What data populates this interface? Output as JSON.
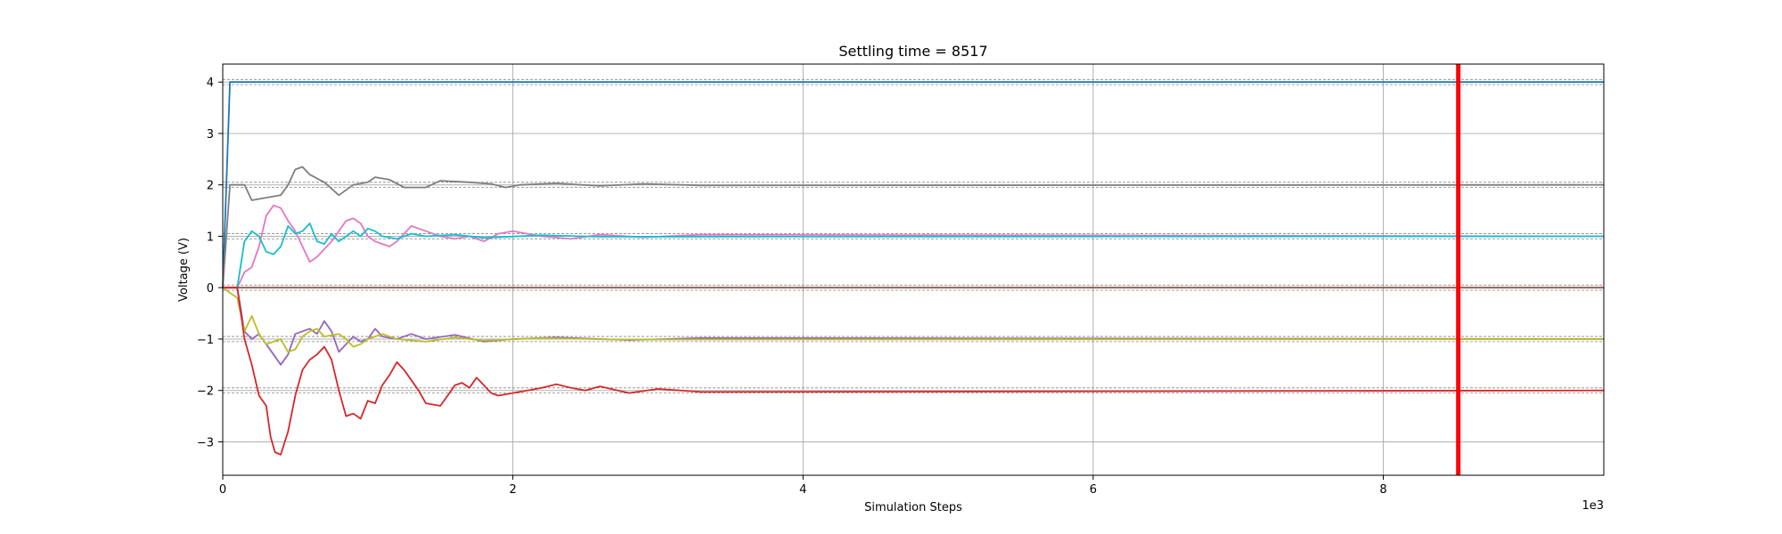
{
  "chart_data": {
    "type": "line",
    "title": "Settling time = 8517",
    "xlabel": "Simulation Steps",
    "ylabel": "Voltage (V)",
    "x_offset_text": "1e3",
    "xlim": [
      0,
      9.52
    ],
    "ylim": [
      -3.65,
      4.35
    ],
    "x_ticks": [
      0,
      2,
      4,
      6,
      8
    ],
    "x_tick_labels": [
      "0",
      "2",
      "4",
      "6",
      "8"
    ],
    "y_ticks": [
      -3,
      -2,
      -1,
      0,
      1,
      2,
      3,
      4
    ],
    "y_tick_labels": [
      "−3",
      "−2",
      "−1",
      "0",
      "1",
      "2",
      "3",
      "4"
    ],
    "grid": true,
    "tolerance_band": 0.05,
    "settling_marker": {
      "x": 8.517,
      "color": "#ff0000"
    },
    "series": [
      {
        "color": "#1f77b4",
        "target": 4,
        "points": [
          [
            0,
            0
          ],
          [
            0.05,
            4
          ],
          [
            9.52,
            4
          ]
        ]
      },
      {
        "color": "#7f7f7f",
        "target": 2,
        "points": [
          [
            0,
            0
          ],
          [
            0.05,
            2
          ],
          [
            0.15,
            2
          ],
          [
            0.2,
            1.7
          ],
          [
            0.3,
            1.75
          ],
          [
            0.4,
            1.8
          ],
          [
            0.45,
            2.0
          ],
          [
            0.5,
            2.3
          ],
          [
            0.55,
            2.35
          ],
          [
            0.6,
            2.2
          ],
          [
            0.7,
            2.05
          ],
          [
            0.8,
            1.8
          ],
          [
            0.9,
            2.0
          ],
          [
            1.0,
            2.05
          ],
          [
            1.05,
            2.15
          ],
          [
            1.15,
            2.1
          ],
          [
            1.25,
            1.95
          ],
          [
            1.4,
            1.95
          ],
          [
            1.5,
            2.08
          ],
          [
            1.7,
            2.05
          ],
          [
            1.85,
            2.02
          ],
          [
            1.95,
            1.95
          ],
          [
            2.05,
            2.0
          ],
          [
            2.3,
            2.03
          ],
          [
            2.6,
            1.98
          ],
          [
            2.9,
            2.02
          ],
          [
            3.3,
            1.99
          ],
          [
            9.52,
            2.0
          ]
        ]
      },
      {
        "color": "#e377c2",
        "target": 1,
        "points": [
          [
            0,
            0
          ],
          [
            0.1,
            0.0
          ],
          [
            0.15,
            0.3
          ],
          [
            0.2,
            0.4
          ],
          [
            0.25,
            0.8
          ],
          [
            0.3,
            1.4
          ],
          [
            0.35,
            1.6
          ],
          [
            0.4,
            1.55
          ],
          [
            0.45,
            1.3
          ],
          [
            0.5,
            1.1
          ],
          [
            0.55,
            0.8
          ],
          [
            0.6,
            0.5
          ],
          [
            0.65,
            0.6
          ],
          [
            0.75,
            0.9
          ],
          [
            0.8,
            1.1
          ],
          [
            0.85,
            1.3
          ],
          [
            0.9,
            1.35
          ],
          [
            0.95,
            1.25
          ],
          [
            1.0,
            1.0
          ],
          [
            1.05,
            0.9
          ],
          [
            1.1,
            0.85
          ],
          [
            1.15,
            0.8
          ],
          [
            1.2,
            0.9
          ],
          [
            1.3,
            1.2
          ],
          [
            1.35,
            1.15
          ],
          [
            1.4,
            1.1
          ],
          [
            1.5,
            1.0
          ],
          [
            1.6,
            0.95
          ],
          [
            1.7,
            1.0
          ],
          [
            1.8,
            0.9
          ],
          [
            1.9,
            1.05
          ],
          [
            2.0,
            1.1
          ],
          [
            2.2,
            1.0
          ],
          [
            2.4,
            0.95
          ],
          [
            2.6,
            1.03
          ],
          [
            2.9,
            0.98
          ],
          [
            3.3,
            1.03
          ],
          [
            9.52,
            1.0
          ]
        ]
      },
      {
        "color": "#17becf",
        "target": 1,
        "points": [
          [
            0,
            0
          ],
          [
            0.1,
            0.0
          ],
          [
            0.15,
            0.9
          ],
          [
            0.2,
            1.1
          ],
          [
            0.25,
            1.0
          ],
          [
            0.3,
            0.7
          ],
          [
            0.35,
            0.65
          ],
          [
            0.4,
            0.8
          ],
          [
            0.45,
            1.2
          ],
          [
            0.5,
            1.05
          ],
          [
            0.55,
            1.1
          ],
          [
            0.6,
            1.25
          ],
          [
            0.65,
            0.9
          ],
          [
            0.7,
            0.85
          ],
          [
            0.75,
            1.05
          ],
          [
            0.8,
            0.9
          ],
          [
            0.85,
            1.0
          ],
          [
            0.9,
            1.1
          ],
          [
            0.95,
            1.0
          ],
          [
            1.0,
            1.15
          ],
          [
            1.05,
            1.1
          ],
          [
            1.1,
            1.0
          ],
          [
            1.2,
            0.95
          ],
          [
            1.3,
            1.05
          ],
          [
            1.4,
            1.0
          ],
          [
            1.6,
            1.03
          ],
          [
            1.8,
            0.97
          ],
          [
            2.2,
            1.02
          ],
          [
            2.6,
            0.99
          ],
          [
            9.52,
            1.0
          ]
        ]
      },
      {
        "color": "#8c564b",
        "target": 0,
        "points": [
          [
            0,
            0
          ],
          [
            9.52,
            0
          ]
        ]
      },
      {
        "color": "#9467bd",
        "target": -1,
        "points": [
          [
            0,
            0
          ],
          [
            0.1,
            0.0
          ],
          [
            0.15,
            -0.85
          ],
          [
            0.2,
            -1.0
          ],
          [
            0.25,
            -0.9
          ],
          [
            0.3,
            -1.1
          ],
          [
            0.35,
            -1.3
          ],
          [
            0.4,
            -1.5
          ],
          [
            0.45,
            -1.3
          ],
          [
            0.5,
            -0.9
          ],
          [
            0.55,
            -0.85
          ],
          [
            0.6,
            -0.8
          ],
          [
            0.65,
            -0.9
          ],
          [
            0.7,
            -0.65
          ],
          [
            0.75,
            -0.85
          ],
          [
            0.8,
            -1.25
          ],
          [
            0.85,
            -1.1
          ],
          [
            0.9,
            -0.95
          ],
          [
            0.95,
            -1.05
          ],
          [
            1.0,
            -1.0
          ],
          [
            1.05,
            -0.8
          ],
          [
            1.1,
            -0.95
          ],
          [
            1.2,
            -1.0
          ],
          [
            1.3,
            -0.9
          ],
          [
            1.4,
            -1.0
          ],
          [
            1.6,
            -0.92
          ],
          [
            1.8,
            -1.05
          ],
          [
            2.0,
            -1.0
          ],
          [
            2.3,
            -0.97
          ],
          [
            2.8,
            -1.02
          ],
          [
            3.3,
            -0.98
          ],
          [
            9.52,
            -1.0
          ]
        ]
      },
      {
        "color": "#bcbd22",
        "target": -1,
        "points": [
          [
            0,
            0
          ],
          [
            0.1,
            -0.2
          ],
          [
            0.15,
            -0.85
          ],
          [
            0.2,
            -0.55
          ],
          [
            0.25,
            -0.9
          ],
          [
            0.3,
            -1.1
          ],
          [
            0.35,
            -1.05
          ],
          [
            0.4,
            -1.0
          ],
          [
            0.45,
            -1.25
          ],
          [
            0.5,
            -1.2
          ],
          [
            0.55,
            -0.95
          ],
          [
            0.6,
            -0.85
          ],
          [
            0.65,
            -0.8
          ],
          [
            0.7,
            -0.95
          ],
          [
            0.8,
            -0.9
          ],
          [
            0.85,
            -1.0
          ],
          [
            0.9,
            -1.15
          ],
          [
            0.95,
            -1.1
          ],
          [
            1.0,
            -1.0
          ],
          [
            1.1,
            -0.9
          ],
          [
            1.2,
            -1.0
          ],
          [
            1.4,
            -1.05
          ],
          [
            1.6,
            -0.97
          ],
          [
            1.8,
            -1.03
          ],
          [
            2.2,
            -0.98
          ],
          [
            2.7,
            -1.01
          ],
          [
            9.52,
            -1.0
          ]
        ]
      },
      {
        "color": "#d62728",
        "target": -2,
        "points": [
          [
            0,
            0
          ],
          [
            0.1,
            0.0
          ],
          [
            0.15,
            -1.0
          ],
          [
            0.2,
            -1.5
          ],
          [
            0.25,
            -2.1
          ],
          [
            0.3,
            -2.3
          ],
          [
            0.33,
            -2.9
          ],
          [
            0.36,
            -3.2
          ],
          [
            0.4,
            -3.25
          ],
          [
            0.45,
            -2.8
          ],
          [
            0.5,
            -2.1
          ],
          [
            0.55,
            -1.6
          ],
          [
            0.6,
            -1.4
          ],
          [
            0.65,
            -1.3
          ],
          [
            0.7,
            -1.15
          ],
          [
            0.75,
            -1.4
          ],
          [
            0.8,
            -2.0
          ],
          [
            0.85,
            -2.5
          ],
          [
            0.9,
            -2.45
          ],
          [
            0.95,
            -2.55
          ],
          [
            1.0,
            -2.2
          ],
          [
            1.05,
            -2.25
          ],
          [
            1.1,
            -1.9
          ],
          [
            1.15,
            -1.7
          ],
          [
            1.2,
            -1.45
          ],
          [
            1.25,
            -1.6
          ],
          [
            1.3,
            -1.8
          ],
          [
            1.35,
            -2.0
          ],
          [
            1.4,
            -2.25
          ],
          [
            1.5,
            -2.3
          ],
          [
            1.55,
            -2.1
          ],
          [
            1.6,
            -1.9
          ],
          [
            1.65,
            -1.85
          ],
          [
            1.7,
            -1.95
          ],
          [
            1.75,
            -1.75
          ],
          [
            1.8,
            -1.9
          ],
          [
            1.85,
            -2.05
          ],
          [
            1.9,
            -2.1
          ],
          [
            2.0,
            -2.05
          ],
          [
            2.1,
            -2.0
          ],
          [
            2.2,
            -1.95
          ],
          [
            2.3,
            -1.88
          ],
          [
            2.4,
            -1.95
          ],
          [
            2.5,
            -2.0
          ],
          [
            2.6,
            -1.92
          ],
          [
            2.8,
            -2.05
          ],
          [
            3.0,
            -1.97
          ],
          [
            3.3,
            -2.03
          ],
          [
            9.52,
            -2.0
          ]
        ]
      }
    ]
  }
}
